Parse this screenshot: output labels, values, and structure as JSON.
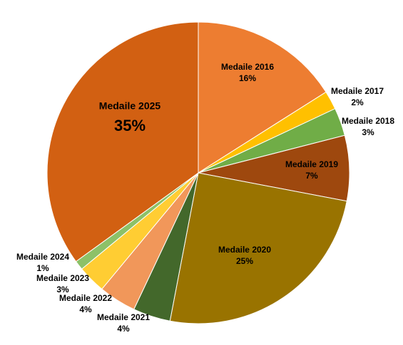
{
  "chart_data": {
    "type": "pie",
    "categories": [
      "Medaile 2016",
      "Medaile 2017",
      "Medaile 2018",
      "Medaile 2019",
      "Medaile 2020",
      "Medaile 2021",
      "Medaile 2022",
      "Medaile 2023",
      "Medaile 2024",
      "Medaile 2025"
    ],
    "values": [
      16,
      2,
      3,
      7,
      25,
      4,
      4,
      3,
      1,
      35
    ],
    "value_labels": [
      "16%",
      "2%",
      "3%",
      "7%",
      "25%",
      "4%",
      "4%",
      "3%",
      "1%",
      "35%"
    ],
    "colors": [
      "#ED7D31",
      "#FFC000",
      "#70AD47",
      "#9E480E",
      "#997300",
      "#43682B",
      "#F1975A",
      "#FFCD33",
      "#8CC168",
      "#D26012"
    ]
  }
}
